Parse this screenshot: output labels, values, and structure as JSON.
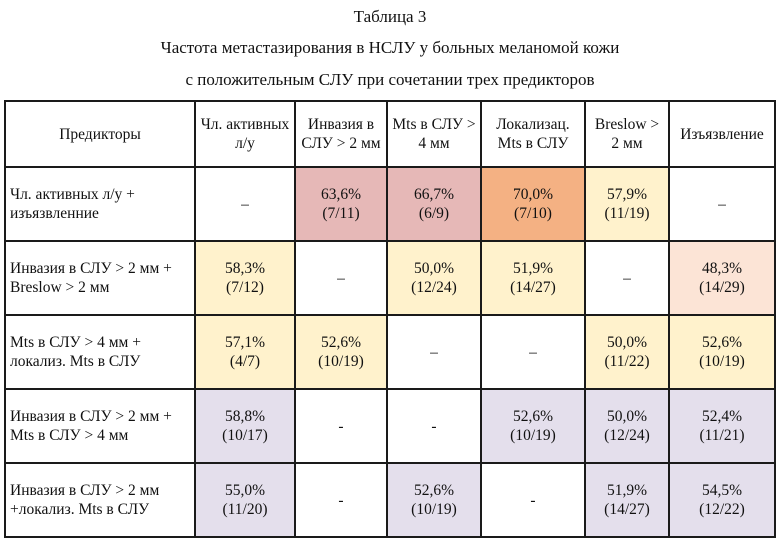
{
  "caption": {
    "line1": "Таблица 3",
    "line2": "Частота метастазирования в НСЛУ у больных меланомой кожи",
    "line3": "с положительным СЛУ при сочетании трех предикторов"
  },
  "table": {
    "headers": [
      "Предикторы",
      "Чл. активных л/у",
      "Инвазия в СЛУ > 2 мм",
      "Mts в СЛУ > 4 мм",
      "Локализац. Mts в СЛУ",
      "Breslow > 2 мм",
      "Изъязвление"
    ],
    "rows": [
      {
        "label": "Чл. активных л/у + изъязвленние",
        "cells": [
          {
            "pct": "–",
            "frac": "",
            "color": "white"
          },
          {
            "pct": "63,6%",
            "frac": "(7/11)",
            "color": "pink"
          },
          {
            "pct": "66,7%",
            "frac": "(6/9)",
            "color": "pink"
          },
          {
            "pct": "70,0%",
            "frac": "(7/10)",
            "color": "orange"
          },
          {
            "pct": "57,9%",
            "frac": "(11/19)",
            "color": "yellow"
          },
          {
            "pct": "–",
            "frac": "",
            "color": "white"
          }
        ]
      },
      {
        "label": "Инвазия в СЛУ > 2 мм + Breslow > 2 мм",
        "cells": [
          {
            "pct": "58,3%",
            "frac": "(7/12)",
            "color": "yellow"
          },
          {
            "pct": "–",
            "frac": "",
            "color": "white"
          },
          {
            "pct": "50,0%",
            "frac": "(12/24)",
            "color": "yellow"
          },
          {
            "pct": "51,9%",
            "frac": "(14/27)",
            "color": "yellow"
          },
          {
            "pct": "–",
            "frac": "",
            "color": "white"
          },
          {
            "pct": "48,3%",
            "frac": "(14/29)",
            "color": "peach"
          }
        ]
      },
      {
        "label": "Mts в СЛУ > 4 мм + локализ. Mts в СЛУ",
        "cells": [
          {
            "pct": "57,1%",
            "frac": "(4/7)",
            "color": "yellow"
          },
          {
            "pct": "52,6%",
            "frac": "(10/19)",
            "color": "yellow"
          },
          {
            "pct": "–",
            "frac": "",
            "color": "white"
          },
          {
            "pct": "–",
            "frac": "",
            "color": "white"
          },
          {
            "pct": "50,0%",
            "frac": "(11/22)",
            "color": "yellow"
          },
          {
            "pct": "52,6%",
            "frac": "(10/19)",
            "color": "yellow"
          }
        ]
      },
      {
        "label": "Инвазия в СЛУ > 2 мм + Mts в СЛУ > 4 мм",
        "cells": [
          {
            "pct": "58,8%",
            "frac": "(10/17)",
            "color": "lav"
          },
          {
            "pct": "-",
            "frac": "",
            "color": "white"
          },
          {
            "pct": "-",
            "frac": "",
            "color": "white"
          },
          {
            "pct": "52,6%",
            "frac": "(10/19)",
            "color": "lav"
          },
          {
            "pct": "50,0%",
            "frac": "(12/24)",
            "color": "lav"
          },
          {
            "pct": "52,4%",
            "frac": "(11/21)",
            "color": "lav"
          }
        ]
      },
      {
        "label": "Инвазия в СЛУ > 2 мм +локализ. Mts в СЛУ",
        "cells": [
          {
            "pct": "55,0%",
            "frac": "(11/20)",
            "color": "lav"
          },
          {
            "pct": "-",
            "frac": "",
            "color": "white"
          },
          {
            "pct": "52,6%",
            "frac": "(10/19)",
            "color": "lav"
          },
          {
            "pct": "-",
            "frac": "",
            "color": "white"
          },
          {
            "pct": "51,9%",
            "frac": "(14/27)",
            "color": "lav"
          },
          {
            "pct": "54,5%",
            "frac": "(12/22)",
            "color": "lav"
          }
        ]
      }
    ]
  }
}
